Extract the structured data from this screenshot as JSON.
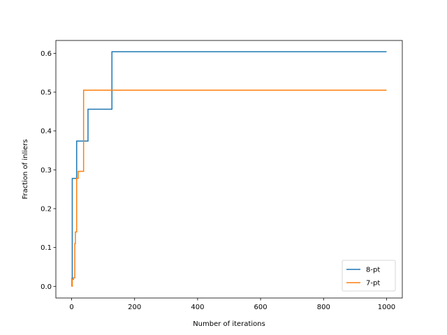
{
  "chart_data": {
    "type": "line",
    "title": "",
    "xlabel": "Number of iterations",
    "ylabel": "Fraction of inliers",
    "xlim": [
      -50,
      1050
    ],
    "ylim": [
      -0.03,
      0.633
    ],
    "xticks": [
      0,
      200,
      400,
      600,
      800,
      1000
    ],
    "xtick_labels": [
      "0",
      "200",
      "400",
      "600",
      "800",
      "1000"
    ],
    "yticks": [
      0.0,
      0.1,
      0.2,
      0.3,
      0.4,
      0.5,
      0.6
    ],
    "ytick_labels": [
      "0.0",
      "0.1",
      "0.2",
      "0.3",
      "0.4",
      "0.5",
      "0.6"
    ],
    "grid": false,
    "legend_position": "lower-right",
    "step": "post",
    "series": [
      {
        "name": "8-pt",
        "color": "#1f77b4",
        "x": [
          0,
          1,
          2,
          16,
          52,
          128,
          1000
        ],
        "y": [
          0.0,
          0.02,
          0.278,
          0.374,
          0.456,
          0.604,
          0.604
        ]
      },
      {
        "name": "7-pt",
        "color": "#ff7f0e",
        "x": [
          0,
          2,
          6,
          10,
          12,
          16,
          21,
          38,
          1000
        ],
        "y": [
          0.0,
          0.018,
          0.022,
          0.11,
          0.14,
          0.278,
          0.296,
          0.505,
          0.505
        ]
      }
    ]
  }
}
